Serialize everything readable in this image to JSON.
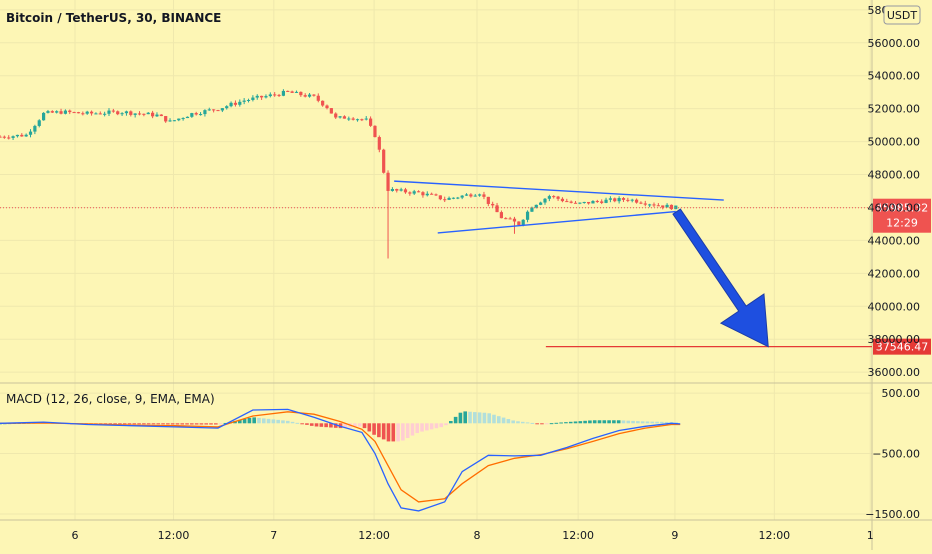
{
  "header": {
    "symbol_title": "Bitcoin / TetherUS, 30, BINANCE",
    "currency_badge": "USDT"
  },
  "chart_data": [
    {
      "type": "candlestick",
      "title": "Bitcoin / TetherUS, 30, BINANCE",
      "y_axis": {
        "ticks": [
          58000,
          56000,
          54000,
          52000,
          50000,
          48000,
          46000,
          44000,
          42000,
          40000,
          38000,
          36000
        ],
        "tick_labels": [
          "58000.00",
          "56000.00",
          "54000.00",
          "52000.00",
          "50000.00",
          "48000.00",
          "46000.00",
          "44000.00",
          "42000.00",
          "40000.00",
          "38000.00",
          "36000.00"
        ],
        "ylim": [
          35400,
          58600
        ]
      },
      "x_axis": {
        "tick_labels": [
          "6",
          "12:00",
          "7",
          "12:00",
          "8",
          "12:00",
          "9",
          "12:00",
          "1"
        ]
      },
      "current_price": {
        "value": 45985.32,
        "label": "45985.32",
        "countdown": "12:29",
        "color": "#ef5350"
      },
      "target_level": {
        "value": 37546.47,
        "label": "37546.47",
        "color": "#e53935"
      },
      "trendlines": [
        {
          "name": "triangle-upper",
          "points": [
            [
              45.2,
              47600
            ],
            [
              83.0,
              46450
            ]
          ],
          "color": "#2962ff"
        },
        {
          "name": "triangle-lower",
          "points": [
            [
              50.2,
              44450
            ],
            [
              77.5,
              45750
            ]
          ],
          "color": "#2962ff"
        }
      ],
      "arrow": {
        "from": [
          77.6,
          45750
        ],
        "to": [
          88.1,
          37546.47
        ],
        "color": "#1e4fe0"
      },
      "candle_keypoints": [
        [
          0,
          50300
        ],
        [
          3,
          50400
        ],
        [
          5,
          51700
        ],
        [
          7,
          51800
        ],
        [
          10,
          51700
        ],
        [
          14,
          51800
        ],
        [
          18,
          51600
        ],
        [
          19.5,
          51200
        ],
        [
          22,
          51700
        ],
        [
          25,
          52000
        ],
        [
          28,
          52500
        ],
        [
          31,
          52800
        ],
        [
          33,
          53000
        ],
        [
          36,
          52700
        ],
        [
          37.5,
          52100
        ],
        [
          38.5,
          51400
        ],
        [
          40,
          51500
        ],
        [
          42,
          51300
        ],
        [
          43.2,
          50200
        ],
        [
          43.8,
          48700
        ],
        [
          44.4,
          47100
        ],
        [
          45.5,
          47000
        ],
        [
          48,
          46900
        ],
        [
          51,
          46500
        ],
        [
          55,
          46900
        ],
        [
          57.5,
          45400
        ],
        [
          59.5,
          45000
        ],
        [
          61,
          46100
        ],
        [
          63,
          46700
        ],
        [
          66,
          46200
        ],
        [
          69,
          46400
        ],
        [
          72,
          46500
        ],
        [
          74,
          46300
        ],
        [
          76,
          46100
        ],
        [
          77.5,
          45985.32
        ]
      ],
      "spike_lows": [
        {
          "x": 44.3,
          "low": 42900
        },
        {
          "x": 59.2,
          "low": 44400
        }
      ],
      "colors": {
        "up": "#26a69a",
        "down": "#ef5350"
      }
    },
    {
      "type": "macd",
      "title": "MACD (12, 26, close, 9, EMA, EMA)",
      "y_axis": {
        "ticks": [
          500,
          -500,
          -1500
        ],
        "tick_labels": [
          "500.00",
          "−500.00",
          "−1500.00"
        ],
        "ylim": [
          -1600,
          650
        ]
      },
      "macd_line": {
        "color": "#2962ff",
        "points": [
          [
            0,
            0
          ],
          [
            5,
            20
          ],
          [
            10,
            -20
          ],
          [
            15,
            -40
          ],
          [
            20,
            -60
          ],
          [
            25,
            -80
          ],
          [
            29,
            220
          ],
          [
            33,
            230
          ],
          [
            36,
            100
          ],
          [
            39,
            -50
          ],
          [
            41.5,
            -150
          ],
          [
            43,
            -500
          ],
          [
            44.5,
            -1000
          ],
          [
            46,
            -1400
          ],
          [
            48,
            -1450
          ],
          [
            51,
            -1300
          ],
          [
            53,
            -800
          ],
          [
            56,
            -530
          ],
          [
            59,
            -540
          ],
          [
            62,
            -530
          ],
          [
            65,
            -400
          ],
          [
            68,
            -250
          ],
          [
            71,
            -120
          ],
          [
            74,
            -50
          ],
          [
            77,
            0
          ],
          [
            78,
            -10
          ]
        ]
      },
      "signal_line": {
        "color": "#ff6d00",
        "points": [
          [
            0,
            0
          ],
          [
            5,
            5
          ],
          [
            10,
            -10
          ],
          [
            15,
            -30
          ],
          [
            20,
            -40
          ],
          [
            25,
            -60
          ],
          [
            29,
            120
          ],
          [
            33,
            190
          ],
          [
            36,
            150
          ],
          [
            39,
            30
          ],
          [
            41.5,
            -100
          ],
          [
            43,
            -300
          ],
          [
            44.5,
            -700
          ],
          [
            46,
            -1100
          ],
          [
            48,
            -1300
          ],
          [
            51,
            -1250
          ],
          [
            53,
            -1000
          ],
          [
            56,
            -700
          ],
          [
            59,
            -580
          ],
          [
            62,
            -520
          ],
          [
            65,
            -420
          ],
          [
            68,
            -300
          ],
          [
            71,
            -170
          ],
          [
            74,
            -80
          ],
          [
            77,
            -20
          ],
          [
            78,
            -20
          ]
        ]
      },
      "histogram": {
        "colors": {
          "pos_rising": "#26a69a",
          "pos_falling": "#b2dfdb",
          "neg_falling": "#ef5350",
          "neg_rising": "#ffcdd2"
        }
      }
    }
  ]
}
